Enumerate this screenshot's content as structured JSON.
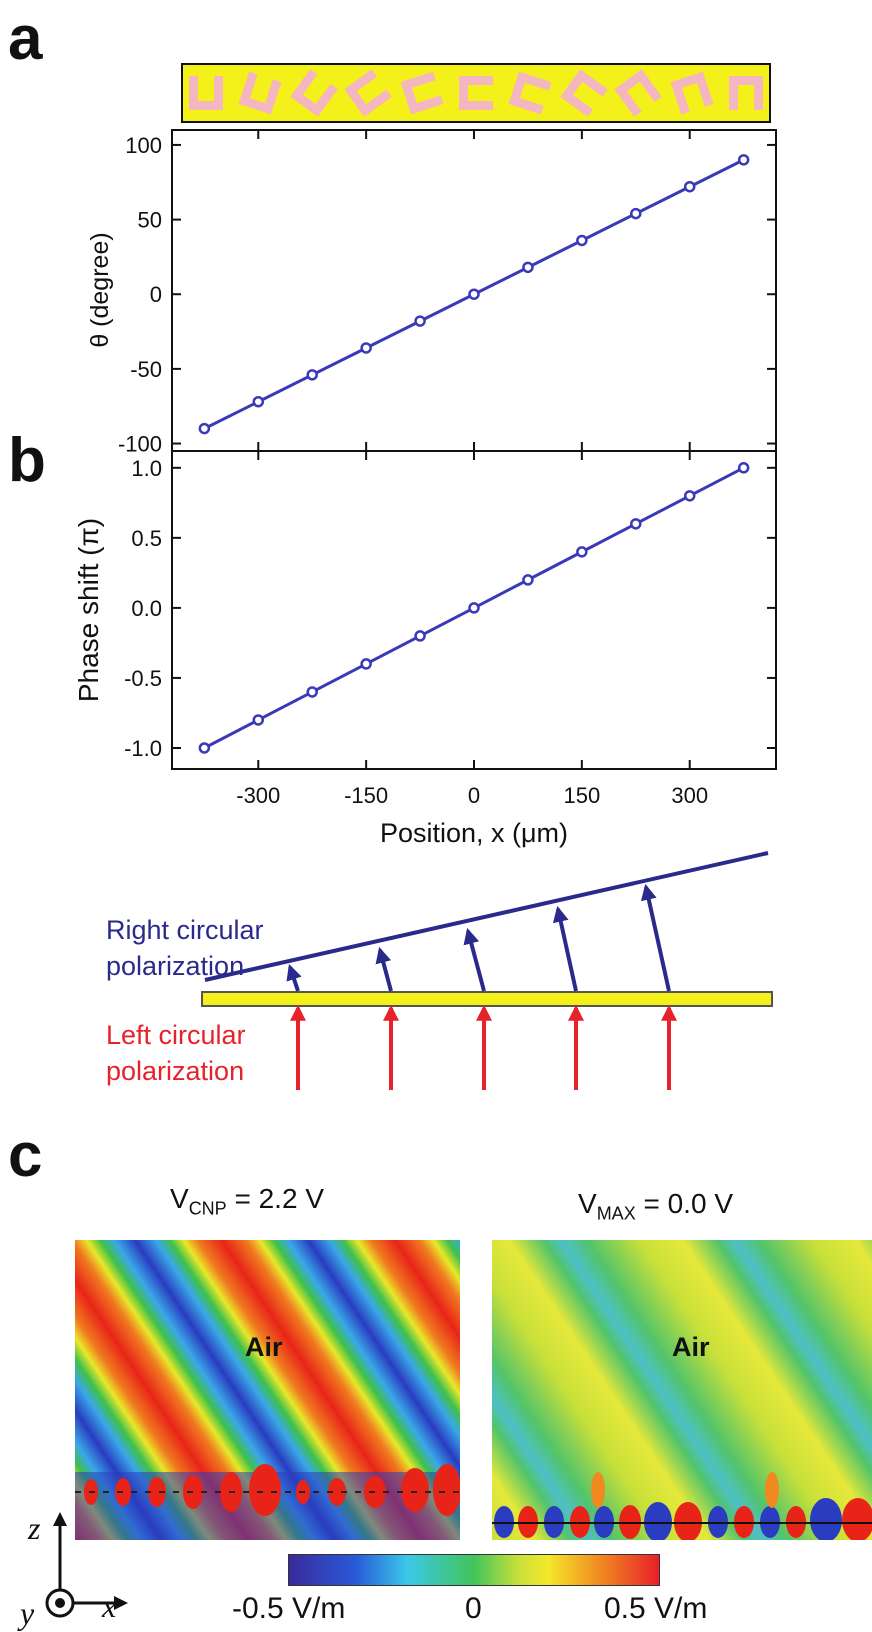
{
  "panels": {
    "a": "a",
    "b": "b",
    "c": "c"
  },
  "chart_data": [
    {
      "type": "line",
      "ylabel": "θ (degree)",
      "x": [
        -375,
        -300,
        -225,
        -150,
        -75,
        0,
        75,
        150,
        225,
        300,
        375
      ],
      "series": [
        {
          "values": [
            -90,
            -72,
            -54,
            -36,
            -18,
            0,
            18,
            36,
            54,
            72,
            90
          ]
        }
      ],
      "yticks": [
        "100",
        "50",
        "0",
        "-50",
        "-100"
      ],
      "ylim": [
        -105,
        110
      ],
      "xlim": [
        -420,
        420
      ],
      "color": "#3a3ab8"
    },
    {
      "type": "line",
      "xlabel": "Position, x (μm)",
      "ylabel": "Phase shift (π)",
      "x": [
        -375,
        -300,
        -225,
        -150,
        -75,
        0,
        75,
        150,
        225,
        300,
        375
      ],
      "series": [
        {
          "values": [
            -1.0,
            -0.8,
            -0.6,
            -0.4,
            -0.2,
            0.0,
            0.2,
            0.4,
            0.6,
            0.8,
            1.0
          ]
        }
      ],
      "xticks": [
        "-300",
        "-150",
        "0",
        "150",
        "300"
      ],
      "yticks": [
        "1.0",
        "0.5",
        "0.0",
        "-0.5",
        "-1.0"
      ],
      "ylim": [
        -1.15,
        1.12
      ],
      "xlim": [
        -420,
        420
      ],
      "color": "#3a3ab8"
    }
  ],
  "antenna_orientations_deg": [
    90,
    72,
    54,
    36,
    18,
    0,
    -18,
    -36,
    -54,
    -72,
    -90
  ],
  "schematic": {
    "rcp_label": "Right circular polarization",
    "lcp_label": "Left circular polarization",
    "rcp_color": "#2a2a8c",
    "lcp_color": "#e8222a",
    "substrate_color": "#f4f01a"
  },
  "fields": {
    "left_title_main": "V",
    "left_title_sub": "CNP",
    "left_title_value": " = 2.2 V",
    "right_title_main": "V",
    "right_title_sub": "MAX",
    "right_title_value": " = 0.0 V",
    "region_label": "Air"
  },
  "axes_icon": {
    "z": "z",
    "x": "x",
    "y": "y"
  },
  "colorbar": {
    "min_label": "-0.5 V/m",
    "mid_label": "0",
    "max_label": "0.5 V/m"
  }
}
